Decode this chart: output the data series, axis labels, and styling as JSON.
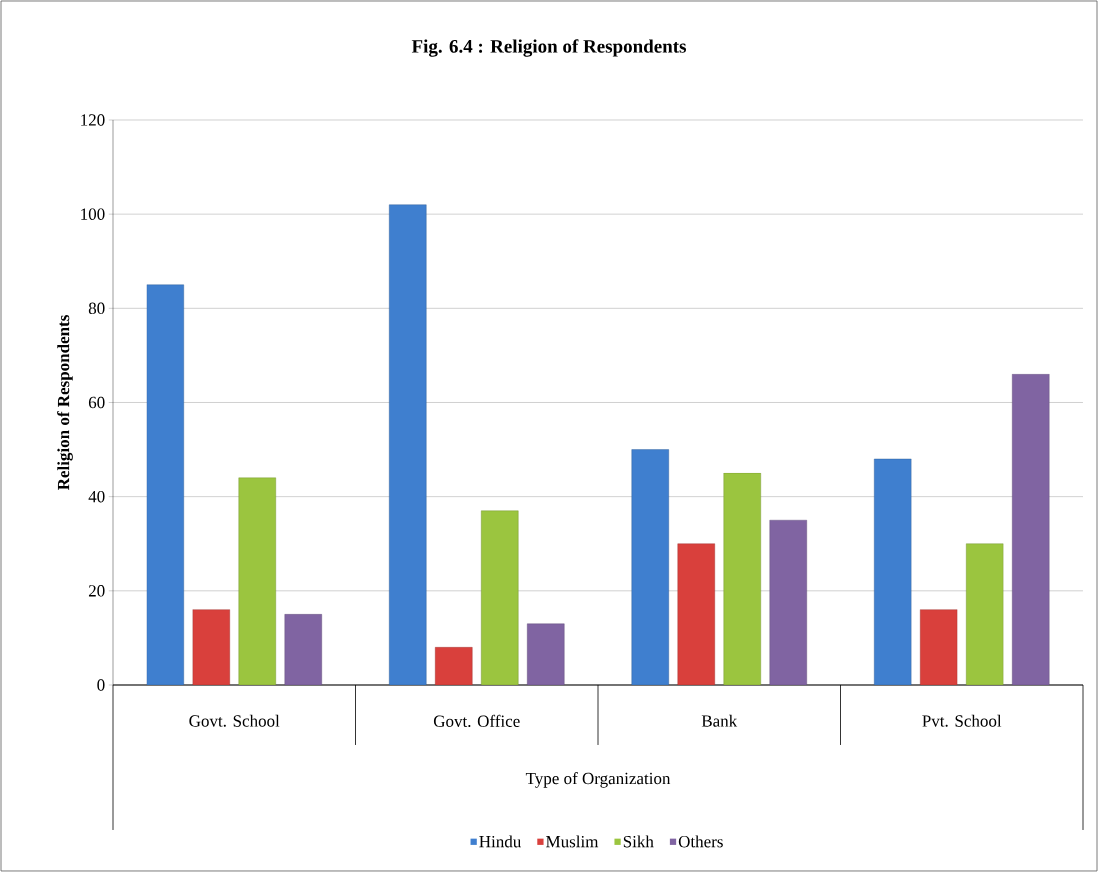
{
  "chart_data": {
    "type": "bar",
    "title": "Fig. 6.4 : Religion of Respondents",
    "xlabel": "Type of Organization",
    "ylabel": "Religion of  Respondents",
    "categories": [
      "Govt. School",
      "Govt. Office",
      "Bank",
      "Pvt. School"
    ],
    "series": [
      {
        "name": "Hindu",
        "color": "#3f7fcf",
        "values": [
          85,
          102,
          50,
          48
        ]
      },
      {
        "name": "Muslim",
        "color": "#d9403c",
        "values": [
          16,
          8,
          30,
          16
        ]
      },
      {
        "name": "Sikh",
        "color": "#9bc53f",
        "values": [
          44,
          37,
          45,
          30
        ]
      },
      {
        "name": "Others",
        "color": "#8064a2",
        "values": [
          15,
          13,
          35,
          66
        ]
      }
    ],
    "ylim": [
      0,
      120
    ],
    "yticks": [
      0,
      20,
      40,
      60,
      80,
      100,
      120
    ],
    "grid": "y",
    "legend": "bottom"
  }
}
